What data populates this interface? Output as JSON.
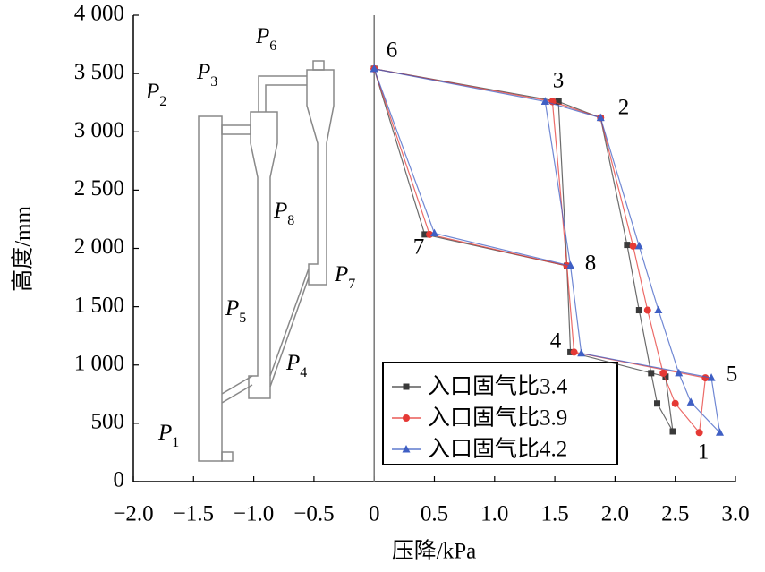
{
  "chart_data": {
    "type": "line",
    "x_label": "压降/kPa",
    "y_label": "高度/mm",
    "xlim": [
      -2.0,
      3.0
    ],
    "ylim": [
      0,
      4000
    ],
    "xticks": [
      {
        "value": -2.0,
        "label": "−2.0"
      },
      {
        "value": -1.5,
        "label": "−1.5"
      },
      {
        "value": -1.0,
        "label": "−1.0"
      },
      {
        "value": -0.5,
        "label": "−0.5"
      },
      0,
      0.5,
      {
        "value": 1.0,
        "label": "1.0"
      },
      1.5,
      {
        "value": 2.0,
        "label": "2.0"
      },
      2.5,
      {
        "value": 3.0,
        "label": "3.0"
      }
    ],
    "yticks": [
      0,
      500,
      {
        "value": 1000,
        "label": "1 000"
      },
      {
        "value": 1500,
        "label": "1 500"
      },
      {
        "value": 2000,
        "label": "2 000"
      },
      {
        "value": 2500,
        "label": "2 500"
      },
      {
        "value": 3000,
        "label": "3 000"
      },
      {
        "value": 3500,
        "label": "3 500"
      },
      {
        "value": 4000,
        "label": "4 000"
      }
    ],
    "legend": "lower right",
    "series": [
      {
        "name": "入口固气比3.4",
        "color": "#3a3a3a",
        "marker": "square",
        "x": [
          0,
          1.53,
          1.88,
          2.1,
          2.2,
          2.3,
          2.35,
          2.48,
          2.42,
          1.63,
          1.6,
          0.42,
          0,
          null,
          1.53,
          1.6
        ],
        "values": [
          3540,
          3260,
          3120,
          2030,
          1470,
          930,
          670,
          430,
          900,
          1110,
          1850,
          2120,
          3540,
          null,
          3260,
          1850
        ]
      },
      {
        "name": "入口固气比3.9",
        "color": "#e53935",
        "marker": "circle",
        "x": [
          0,
          1.48,
          1.88,
          2.15,
          2.27,
          2.4,
          2.5,
          2.7,
          2.75,
          1.66,
          1.6,
          0.46,
          0,
          null,
          1.48,
          1.6
        ],
        "values": [
          3540,
          3260,
          3120,
          2020,
          1470,
          930,
          670,
          420,
          890,
          1110,
          1850,
          2120,
          3540,
          null,
          3260,
          1850
        ]
      },
      {
        "name": "入口固气比4.2",
        "color": "#3f5fc4",
        "marker": "triangle",
        "x": [
          0,
          1.42,
          1.88,
          2.2,
          2.36,
          2.53,
          2.63,
          2.87,
          2.8,
          1.72,
          1.63,
          0.5,
          0,
          null,
          1.42,
          1.63
        ],
        "values": [
          3540,
          3260,
          3120,
          2020,
          1470,
          930,
          680,
          420,
          890,
          1100,
          1850,
          2130,
          3540,
          null,
          3260,
          1850
        ]
      }
    ],
    "point_labels": [
      "1",
      "2",
      "3",
      "4",
      "5",
      "6",
      "7",
      "8"
    ],
    "diagram_labels": [
      {
        "main": "P",
        "sub": "1"
      },
      {
        "main": "P",
        "sub": "2"
      },
      {
        "main": "P",
        "sub": "3"
      },
      {
        "main": "P",
        "sub": "4"
      },
      {
        "main": "P",
        "sub": "5"
      },
      {
        "main": "P",
        "sub": "6"
      },
      {
        "main": "P",
        "sub": "7"
      },
      {
        "main": "P",
        "sub": "8"
      }
    ]
  }
}
